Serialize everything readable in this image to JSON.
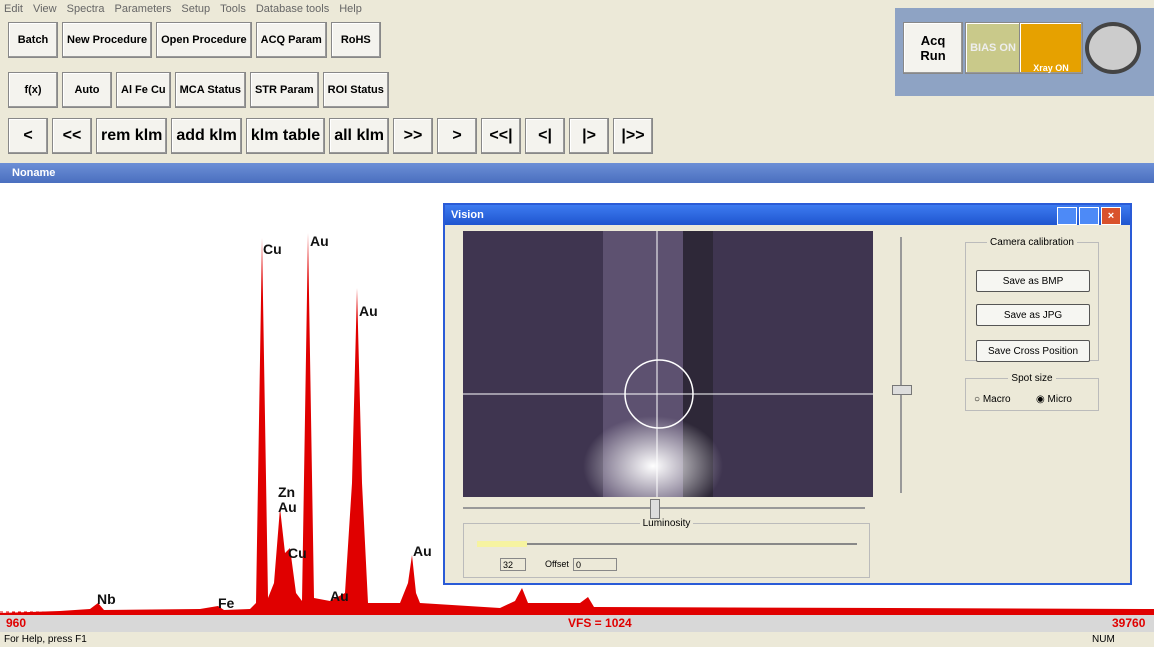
{
  "menu": [
    "Edit",
    "View",
    "Spectra",
    "Parameters",
    "Setup",
    "Tools",
    "Database tools",
    "Help"
  ],
  "toolbar": {
    "row1": [
      "Batch",
      "New Procedure",
      "Open Procedure",
      "ACQ Param",
      "RoHS"
    ],
    "row2": [
      "f(x)",
      "Auto",
      "Al Fe Cu",
      "MCA Status",
      "STR Param",
      "ROI Status"
    ],
    "row3": [
      "<",
      "<<",
      "rem klm",
      "add klm",
      "klm table",
      "all klm",
      ">>",
      ">",
      "<<|",
      "<|",
      "|>",
      "|>>"
    ]
  },
  "acq_panel": {
    "run": "Acq Run",
    "bias": "BIAS ON",
    "xray": "Xray ON"
  },
  "window_title": "Noname",
  "peaks": [
    "Cu",
    "Au",
    "Au",
    "Zn Au",
    "Cu",
    "Au",
    "Nb",
    "Fe",
    "Au"
  ],
  "spectrum_bar": {
    "left": "960",
    "center": "VFS = 1024",
    "right": "39760"
  },
  "status": {
    "help": "For Help, press F1",
    "num": "NUM"
  },
  "vision": {
    "title": "Vision",
    "calibration": "Camera calibration",
    "buttons": [
      "Save as BMP",
      "Save as JPG",
      "Save Cross Position"
    ],
    "spot_size": "Spot size",
    "macro": "Macro",
    "micro": "Micro",
    "luminosity": "Luminosity",
    "lum_value": "32",
    "offset": "Offset",
    "offset_value": "0"
  }
}
